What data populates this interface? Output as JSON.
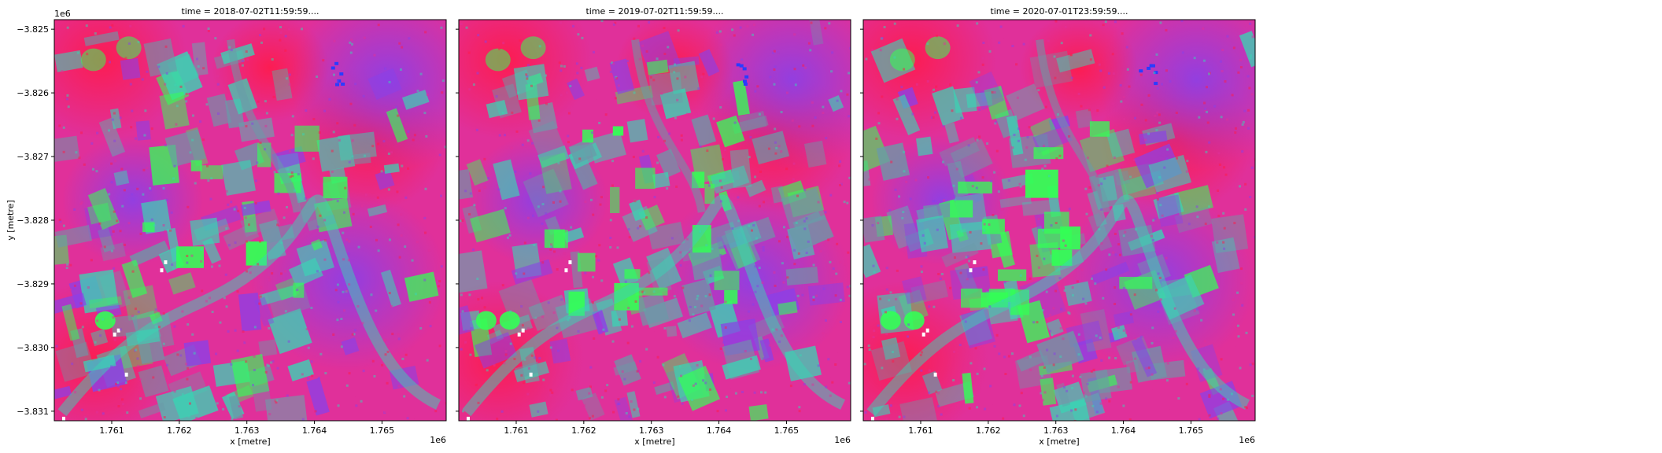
{
  "chart_data": [
    {
      "type": "heatmap",
      "title": "time = 2018-07-02T11:59:59....",
      "xlabel": "x [metre]",
      "ylabel": "y [metre]",
      "x_offset_label": "1e6",
      "y_offset_label": "1e6",
      "xlim": [
        1.76015,
        1.76595
      ],
      "ylim": [
        -3.83115,
        -3.82485
      ],
      "x_ticks": [
        1.761,
        1.762,
        1.763,
        1.764,
        1.765
      ],
      "x_tick_labels": [
        "1.761",
        "1.762",
        "1.763",
        "1.764",
        "1.765"
      ],
      "y_ticks": [
        -3.825,
        -3.826,
        -3.827,
        -3.828,
        -3.829,
        -3.83,
        -3.831
      ],
      "y_tick_labels": [
        "−3.825",
        "−3.826",
        "−3.827",
        "−3.828",
        "−3.829",
        "−3.830",
        "−3.831"
      ],
      "image": "false-color RGB composite (dominant hues magenta, red, violet, green, cyan)"
    },
    {
      "type": "heatmap",
      "title": "time = 2019-07-02T11:59:59....",
      "xlabel": "x [metre]",
      "x_offset_label": "1e6",
      "xlim": [
        1.76015,
        1.76595
      ],
      "ylim": [
        -3.83115,
        -3.82485
      ],
      "x_ticks": [
        1.761,
        1.762,
        1.763,
        1.764,
        1.765
      ],
      "x_tick_labels": [
        "1.761",
        "1.762",
        "1.763",
        "1.764",
        "1.765"
      ],
      "y_ticks": [
        -3.825,
        -3.826,
        -3.827,
        -3.828,
        -3.829,
        -3.83,
        -3.831
      ],
      "image": "false-color RGB composite (dominant hues magenta, red, violet, green, cyan)"
    },
    {
      "type": "heatmap",
      "title": "time = 2020-07-01T23:59:59....",
      "xlabel": "x [metre]",
      "x_offset_label": "1e6",
      "xlim": [
        1.76015,
        1.76595
      ],
      "ylim": [
        -3.83115,
        -3.82485
      ],
      "x_ticks": [
        1.761,
        1.762,
        1.763,
        1.764,
        1.765
      ],
      "x_tick_labels": [
        "1.761",
        "1.762",
        "1.763",
        "1.764",
        "1.765"
      ],
      "y_ticks": [
        -3.825,
        -3.826,
        -3.827,
        -3.828,
        -3.829,
        -3.83,
        -3.831
      ],
      "image": "false-color RGB composite (dominant hues magenta, red, violet, green, cyan)"
    }
  ],
  "colors": {
    "base_magenta": "#e0309a",
    "red": "#ff1a4a",
    "violet": "#8a40e8",
    "green": "#33ff55",
    "cyan": "#3ad4b4",
    "blue": "#2a3cff",
    "teal_gray": "#6a9aa8"
  }
}
